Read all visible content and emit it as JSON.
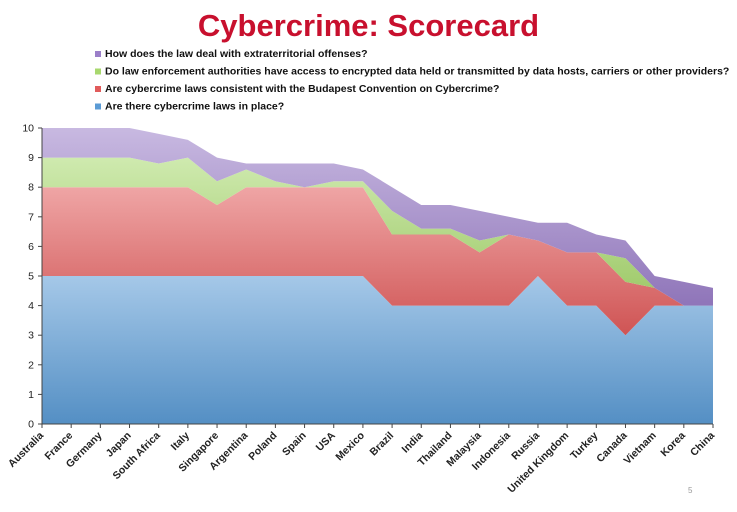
{
  "slide": {
    "page_number": "5"
  },
  "chart_data": {
    "type": "area",
    "stacked": true,
    "title": "Cybercrime: Scorecard",
    "ylim": [
      0,
      10
    ],
    "yticks": [
      0,
      1,
      2,
      3,
      4,
      5,
      6,
      7,
      8,
      9,
      10
    ],
    "grid": false,
    "legend_position": "top",
    "categories": [
      "Australia",
      "France",
      "Germany",
      "Japan",
      "South Africa",
      "Italy",
      "Singapore",
      "Argentina",
      "Poland",
      "Spain",
      "USA",
      "Mexico",
      "Brazil",
      "India",
      "Thailand",
      "Malaysia",
      "Indonesia",
      "Russia",
      "United Kingdom",
      "Turkey",
      "Canada",
      "Vietnam",
      "Korea",
      "China"
    ],
    "series": [
      {
        "name": "Are there cybercrime laws in place?",
        "color": "#5b9bd5",
        "values": [
          5,
          5,
          5,
          5,
          5,
          5,
          5,
          5,
          5,
          5,
          5,
          5,
          4,
          4,
          4,
          4,
          4,
          5,
          4,
          4,
          3,
          4,
          4,
          4
        ]
      },
      {
        "name": "Are cybercrime laws consistent with the Budapest Convention on Cybercrime?",
        "color": "#e15b5b",
        "values": [
          3,
          3,
          3,
          3,
          3,
          3,
          2.4,
          3,
          3,
          3,
          3,
          3,
          2.4,
          2.4,
          2.4,
          1.8,
          2.4,
          1.2,
          1.8,
          1.8,
          1.8,
          0.6,
          0,
          0
        ]
      },
      {
        "name": "Do law enforcement authorities have access to encrypted data held or transmitted by data hosts, carriers or other providers?",
        "color": "#a8d86e",
        "values": [
          1,
          1,
          1,
          1,
          0.8,
          1,
          0.8,
          0.6,
          0.2,
          0,
          0.2,
          0.2,
          0.8,
          0.2,
          0.2,
          0.4,
          0,
          0,
          0,
          0,
          0.8,
          0,
          0,
          0
        ]
      },
      {
        "name": "How does the law deal with extraterritorial offenses?",
        "color": "#9b7fc9",
        "values": [
          1,
          1,
          1,
          1,
          1,
          0.6,
          0.8,
          0.2,
          0.6,
          0.8,
          0.6,
          0.4,
          0.8,
          0.8,
          0.8,
          1,
          0.6,
          0.6,
          1,
          0.6,
          0.6,
          0.4,
          0.8,
          0.6
        ]
      }
    ]
  }
}
